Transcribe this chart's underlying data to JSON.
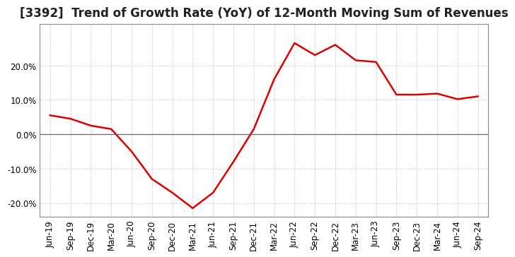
{
  "title": "[3392]  Trend of Growth Rate (YoY) of 12-Month Moving Sum of Revenues",
  "line_color": "#dd0000",
  "background_color": "#ffffff",
  "plot_bg_color": "#ffffff",
  "x_labels": [
    "Jun-19",
    "Sep-19",
    "Dec-19",
    "Mar-20",
    "Jun-20",
    "Sep-20",
    "Dec-20",
    "Mar-21",
    "Jun-21",
    "Sep-21",
    "Dec-21",
    "Mar-22",
    "Jun-22",
    "Sep-22",
    "Dec-22",
    "Mar-23",
    "Jun-23",
    "Sep-23",
    "Dec-23",
    "Mar-24",
    "Jun-24",
    "Sep-24"
  ],
  "y_values": [
    5.5,
    4.5,
    2.5,
    1.5,
    -5.0,
    -13.0,
    -17.0,
    -21.5,
    -17.0,
    -8.0,
    1.5,
    16.0,
    26.5,
    23.0,
    26.0,
    21.5,
    21.0,
    11.5,
    11.5,
    11.8,
    10.2,
    11.0
  ],
  "ylim": [
    -24,
    32
  ],
  "yticks": [
    -20.0,
    -10.0,
    0.0,
    10.0,
    20.0
  ],
  "grid_color": "#bbbbbb",
  "zero_line_color": "#666666",
  "title_fontsize": 12,
  "tick_fontsize": 8.5,
  "line_width": 1.8
}
